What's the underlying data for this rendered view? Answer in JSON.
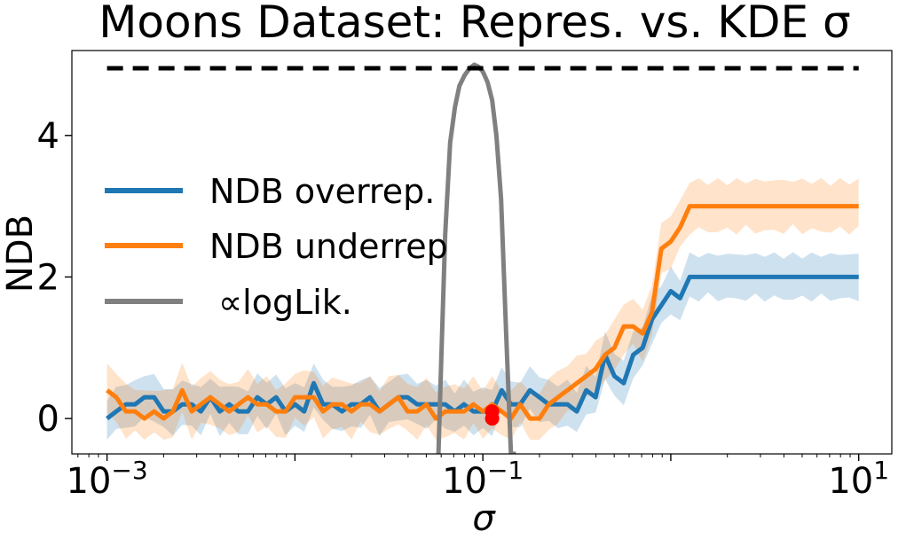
{
  "chart_data": {
    "type": "line",
    "title": "Moons Dataset: Repres. vs. KDE σ",
    "xlabel": "σ",
    "ylabel": "NDB",
    "xscale": "log",
    "xlim": [
      0.00065,
      15
    ],
    "ylim": [
      -0.5,
      5.2
    ],
    "x_ticks": [
      {
        "value": 0.001,
        "label": "10",
        "exp": "−3"
      },
      {
        "value": 0.1,
        "label": "10",
        "exp": "−1"
      },
      {
        "value": 10,
        "label": "10",
        "exp": "1"
      }
    ],
    "y_ticks": [
      {
        "value": 0,
        "label": "0"
      },
      {
        "value": 2,
        "label": "2"
      },
      {
        "value": 4,
        "label": "4"
      }
    ],
    "grid": false,
    "legend_position": "center-left",
    "colors": {
      "overrep": "#1f77b4",
      "underrep": "#ff7f0e",
      "loglik": "#808080",
      "reference": "#000000",
      "marker": "#ff0000"
    },
    "x_sigma": [
      0.001,
      0.00112,
      0.00126,
      0.00141,
      0.00158,
      0.00178,
      0.002,
      0.00224,
      0.00251,
      0.00282,
      0.00316,
      0.00355,
      0.00398,
      0.00447,
      0.00501,
      0.00562,
      0.00631,
      0.00708,
      0.00794,
      0.00891,
      0.01,
      0.0112,
      0.0126,
      0.0141,
      0.0158,
      0.0178,
      0.02,
      0.0224,
      0.0251,
      0.0282,
      0.0316,
      0.0355,
      0.0398,
      0.0447,
      0.0501,
      0.0562,
      0.0631,
      0.0708,
      0.0794,
      0.0891,
      0.1,
      0.112,
      0.126,
      0.141,
      0.158,
      0.178,
      0.2,
      0.224,
      0.251,
      0.282,
      0.316,
      0.355,
      0.398,
      0.447,
      0.501,
      0.562,
      0.631,
      0.708,
      0.794,
      0.891,
      1.0,
      1.12,
      1.26,
      1.41,
      1.58,
      1.78,
      2.0,
      2.24,
      2.51,
      2.82,
      3.16,
      3.55,
      3.98,
      4.47,
      5.01,
      5.62,
      6.31,
      7.08,
      7.94,
      8.91,
      10.0
    ],
    "series": [
      {
        "name": "NDB overrep.",
        "color": "#1f77b4",
        "values": [
          0,
          0.1,
          0.2,
          0.2,
          0.3,
          0.3,
          0.1,
          0.1,
          0.2,
          0.2,
          0.1,
          0.3,
          0.1,
          0.2,
          0.1,
          0.1,
          0.3,
          0.2,
          0.3,
          0.1,
          0.2,
          0.1,
          0.5,
          0.2,
          0.2,
          0.1,
          0.2,
          0.2,
          0.3,
          0.1,
          0.2,
          0.3,
          0.3,
          0.2,
          0.2,
          0.2,
          0.2,
          0.1,
          0.2,
          0.1,
          0.1,
          0.1,
          0.4,
          0.2,
          0.2,
          0.4,
          0.3,
          0.2,
          0.2,
          0.2,
          0.1,
          0.4,
          0.3,
          0.9,
          0.6,
          0.5,
          0.9,
          1.0,
          1.4,
          1.6,
          1.8,
          1.7,
          2.0,
          2.0,
          2.0,
          2.0,
          2.0,
          2.0,
          2.0,
          2.0,
          2.0,
          2.0,
          2.0,
          2.0,
          2.0,
          2.0,
          2.0,
          2.0,
          2.0,
          2.0,
          2.0
        ],
        "band": 0.35
      },
      {
        "name": "NDB underrep",
        "color": "#ff7f0e",
        "values": [
          0.4,
          0.3,
          0.1,
          0.1,
          0.0,
          0.1,
          0.0,
          0.1,
          0.4,
          0.1,
          0.2,
          0.3,
          0.2,
          0.1,
          0.2,
          0.3,
          0.2,
          0.2,
          0.1,
          0.1,
          0.3,
          0.3,
          0.3,
          0.1,
          0.2,
          0.2,
          0.1,
          0.2,
          0.2,
          0.1,
          0.2,
          0.3,
          0.1,
          0.1,
          0.2,
          0.0,
          0.1,
          0.1,
          0.1,
          0.2,
          0.1,
          0.2,
          0.1,
          0.0,
          0.2,
          0.0,
          0.0,
          0.2,
          0.3,
          0.4,
          0.5,
          0.6,
          0.7,
          0.9,
          1.0,
          1.3,
          1.3,
          1.2,
          1.5,
          2.4,
          2.5,
          2.7,
          3.0,
          3.0,
          3.0,
          3.0,
          3.0,
          3.0,
          3.0,
          3.0,
          3.0,
          3.0,
          3.0,
          3.0,
          3.0,
          3.0,
          3.0,
          3.0,
          3.0,
          3.0,
          3.0
        ],
        "band": 0.4
      }
    ],
    "loglik": {
      "name": "∝logLik.",
      "color": "#808080",
      "x": [
        0.058,
        0.06,
        0.063,
        0.067,
        0.071,
        0.075,
        0.08,
        0.085,
        0.09,
        0.095,
        0.1,
        0.106,
        0.112,
        0.118,
        0.125,
        0.133,
        0.141,
        0.15
      ],
      "y": [
        -0.5,
        0.8,
        2.6,
        3.9,
        4.4,
        4.7,
        4.85,
        4.95,
        5.0,
        4.97,
        4.9,
        4.75,
        4.5,
        4.0,
        3.1,
        1.2,
        -0.5,
        -0.5
      ]
    },
    "reference_line": {
      "y": 4.95,
      "style": "dashed",
      "color": "#000000"
    },
    "markers": [
      {
        "x": 0.112,
        "y": 0.0
      },
      {
        "x": 0.112,
        "y": 0.1
      }
    ]
  },
  "legend": {
    "overrep": "NDB overrep.",
    "underrep": "NDB underrep",
    "loglik": "∝logLik."
  }
}
